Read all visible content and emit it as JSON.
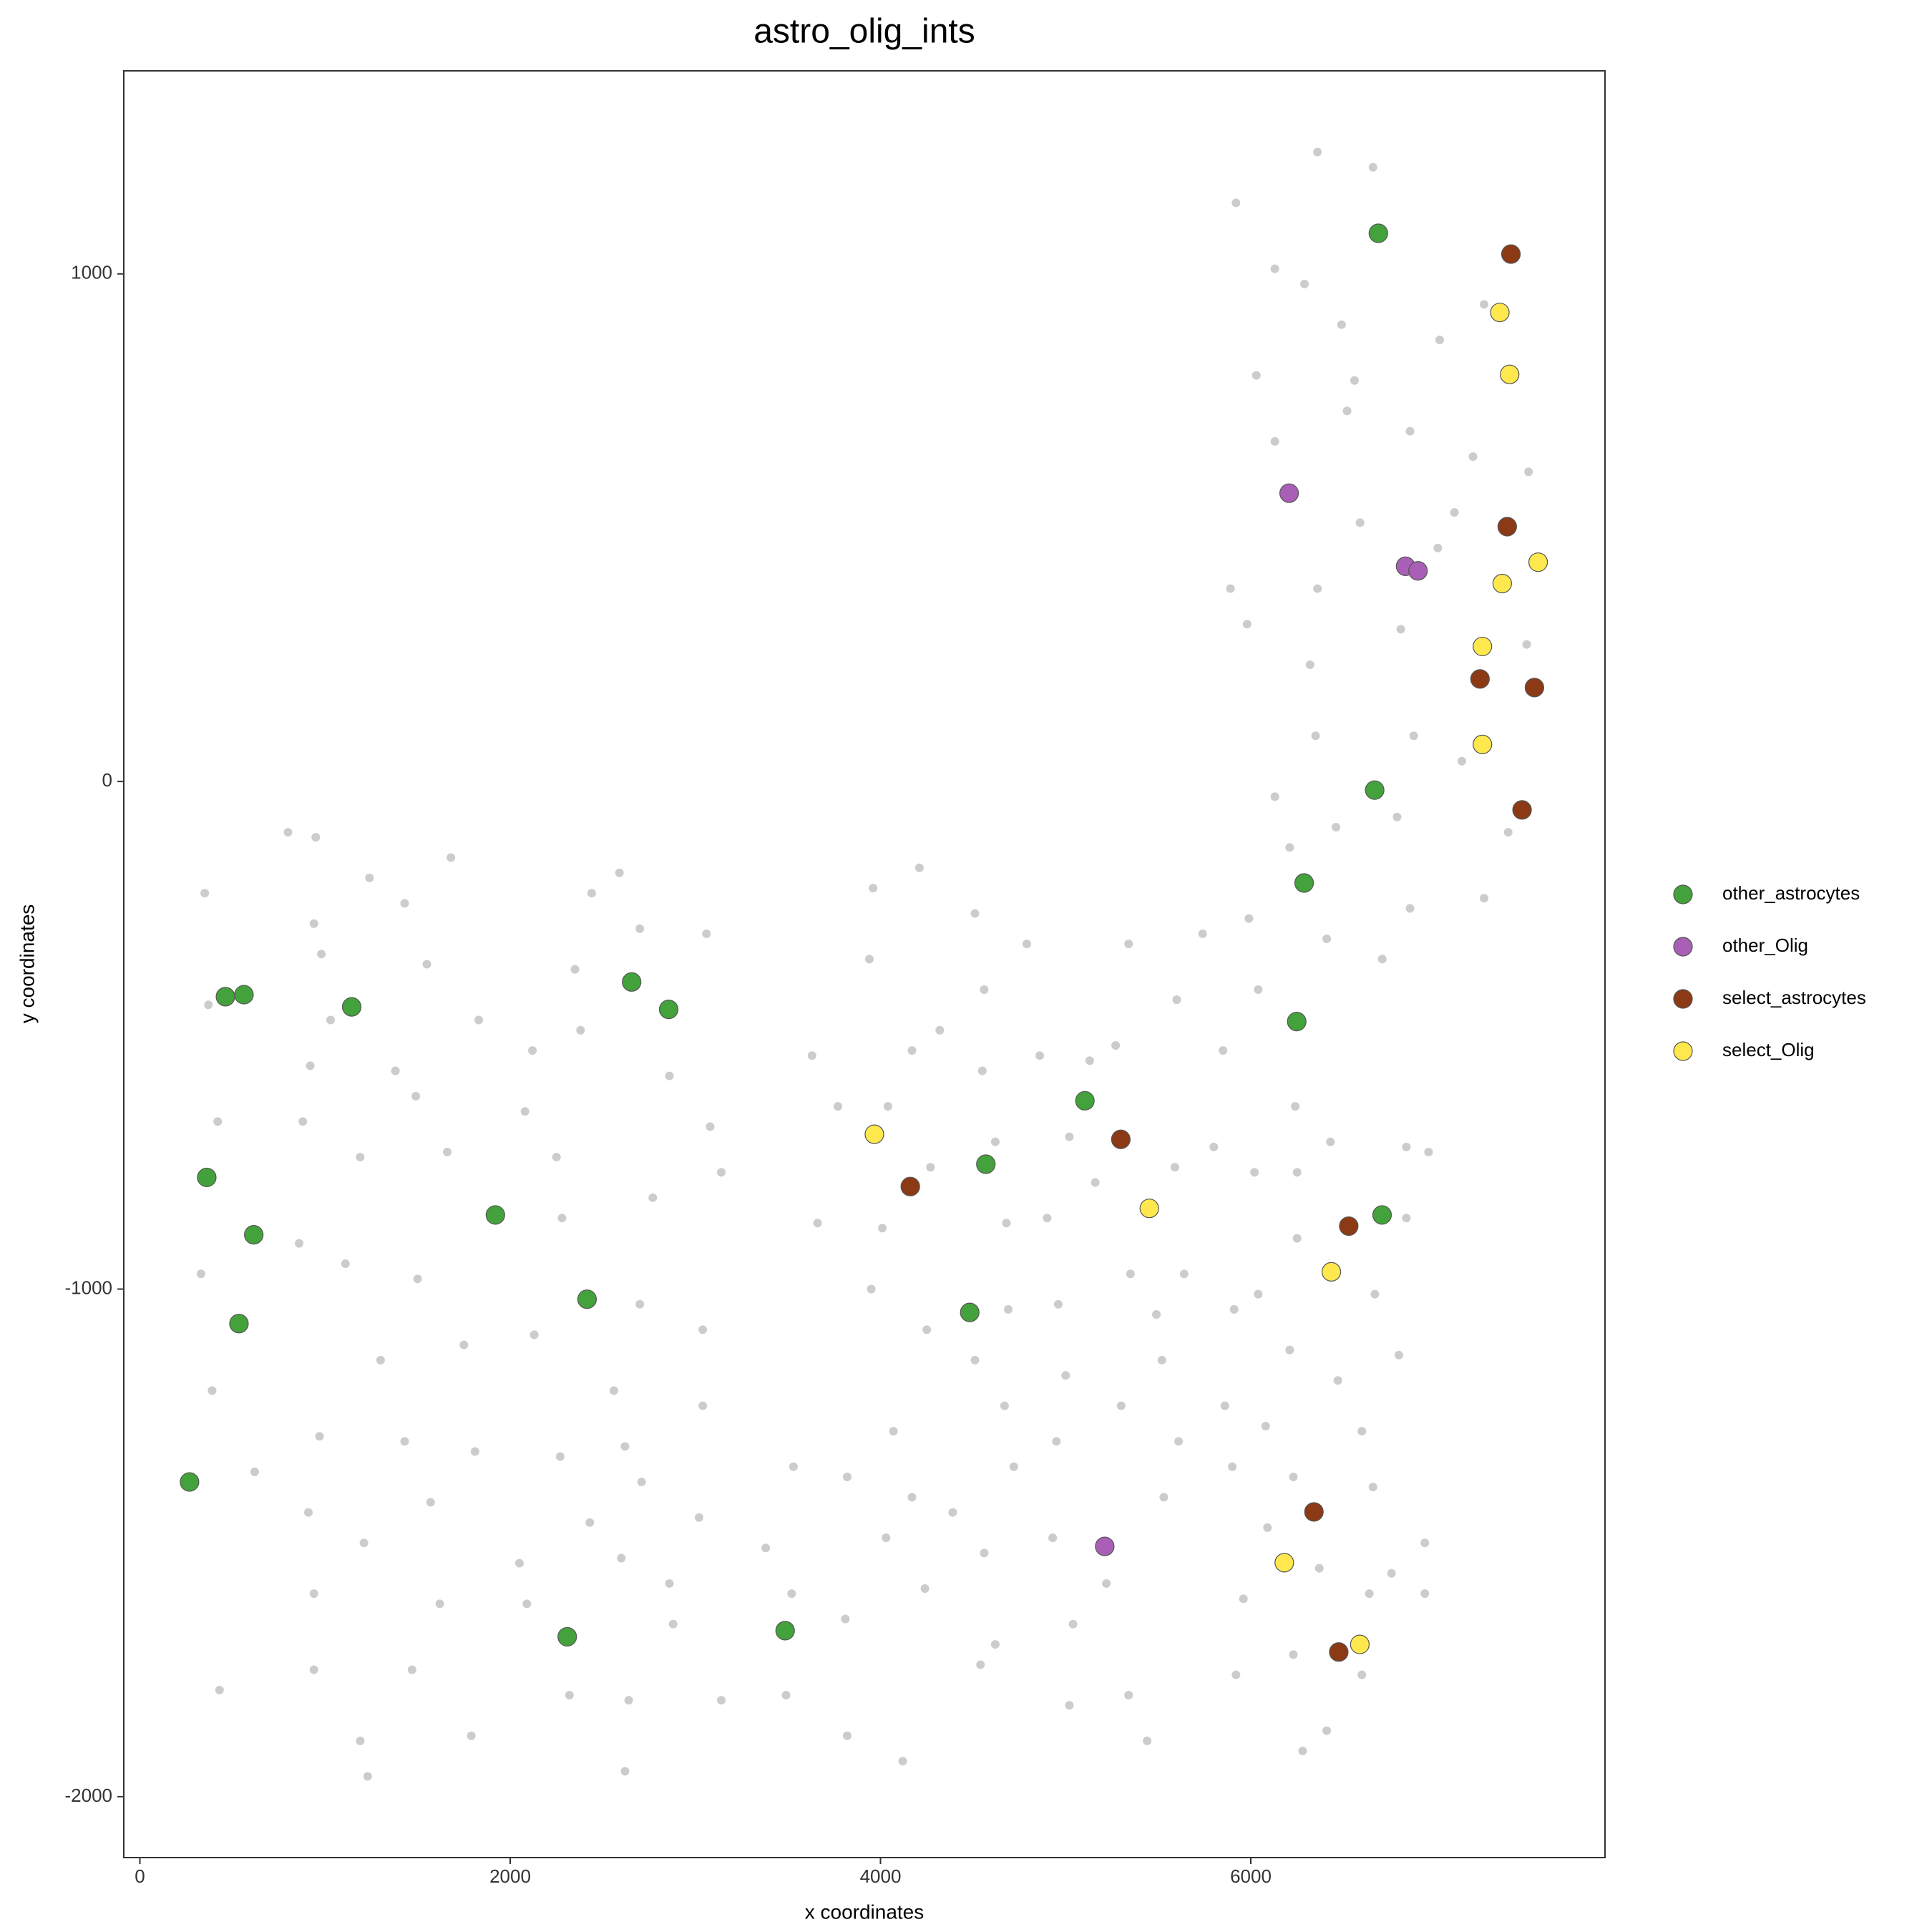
{
  "chart_data": {
    "type": "scatter",
    "title": "astro_olig_ints",
    "x_label": "x coordinates",
    "y_label": "y coordinates",
    "xlim": [
      -87,
      7913
    ],
    "ylim": [
      -2120,
      1400
    ],
    "xticks": [
      0,
      2000,
      4000,
      6000
    ],
    "yticks": [
      -2000,
      -1000,
      0,
      1000
    ],
    "grid": false,
    "legend": "right",
    "series": [
      {
        "color": "#cccccc",
        "x": [
          6360,
          6660,
          5920,
          6130,
          6290,
          7260,
          6490,
          7020,
          6030,
          6560,
          6520,
          6860,
          6130,
          7200,
          7500,
          7100,
          6590,
          7010,
          5890,
          6360,
          5980,
          6810,
          6320,
          7490,
          6880,
          6350,
          7140,
          6130,
          6790,
          6460,
          7390,
          6210,
          7260,
          6860,
          5990,
          6410,
          6710,
          5740,
          5340,
          5600,
          6040,
          5850,
          800,
          950,
          350,
          1240,
          1680,
          940,
          1430,
          370,
          980,
          1550,
          1030,
          1830,
          920,
          1380,
          420,
          1490,
          880,
          1190,
          1660,
          860,
          1110,
          1500,
          330,
          1300,
          1750,
          390,
          970,
          620,
          1430,
          1810,
          1570,
          910,
          1210,
          940,
          1620,
          940,
          1470,
          430,
          1190,
          1230,
          1790,
          2590,
          2440,
          2700,
          3060,
          2350,
          2380,
          2120,
          2860,
          2080,
          3080,
          2250,
          2770,
          3140,
          2280,
          2700,
          3040,
          2130,
          2560,
          3040,
          2620,
          2270,
          2710,
          2430,
          3020,
          2050,
          2600,
          2860,
          2090,
          2880,
          2320,
          2640,
          2620,
          3140,
          3960,
          4210,
          3940,
          3630,
          4170,
          4510,
          4790,
          4560,
          4320,
          4550,
          4860,
          5130,
          5270,
          3770,
          4040,
          4270,
          4620,
          5020,
          5160,
          5590,
          5800,
          3660,
          4010,
          4680,
          4900,
          5350,
          5640,
          3950,
          4690,
          4960,
          5490,
          5910,
          4250,
          4510,
          5000,
          5520,
          4070,
          4670,
          4950,
          5300,
          5610,
          5860,
          3530,
          3820,
          4170,
          4720,
          4390,
          4930,
          5530,
          3380,
          4030,
          4560,
          5220,
          4240,
          3520,
          3810,
          5040,
          4620,
          4540,
          3490,
          3820,
          4120,
          5020,
          5340,
          5440,
          6240,
          6020,
          6250,
          6430,
          6840,
          6960,
          6840,
          6250,
          6040,
          6670,
          6210,
          6800,
          6470,
          6600,
          6080,
          5900,
          6230,
          6660,
          6090,
          6370,
          6640,
          6940,
          6940,
          5960,
          6230,
          6600,
          6410,
          6280,
          5920,
          6760
        ],
        "values": [
          1240,
          1210,
          1140,
          1010,
          980,
          940,
          900,
          870,
          800,
          790,
          730,
          690,
          670,
          640,
          610,
          530,
          510,
          460,
          380,
          380,
          310,
          300,
          230,
          270,
          90,
          90,
          40,
          -30,
          -70,
          -90,
          -100,
          -130,
          -230,
          -250,
          -270,
          -310,
          -350,
          -300,
          -320,
          -430,
          -410,
          -530,
          -100,
          -110,
          -220,
          -190,
          -150,
          -280,
          -240,
          -440,
          -340,
          -360,
          -470,
          -470,
          -560,
          -570,
          -670,
          -620,
          -670,
          -740,
          -730,
          -910,
          -950,
          -980,
          -970,
          -1140,
          -1110,
          -1200,
          -1290,
          -1360,
          -1300,
          -1320,
          -1420,
          -1440,
          -1500,
          -1600,
          -1620,
          -1750,
          -1750,
          -1790,
          -1890,
          -1960,
          -1880,
          -180,
          -220,
          -290,
          -300,
          -370,
          -490,
          -530,
          -580,
          -650,
          -680,
          -740,
          -820,
          -770,
          -860,
          -1030,
          -1080,
          -1090,
          -1200,
          -1230,
          -1310,
          -1330,
          -1380,
          -1460,
          -1450,
          -1540,
          -1530,
          -1580,
          -1620,
          -1660,
          -1800,
          -1810,
          -1950,
          -1810,
          -210,
          -170,
          -350,
          -540,
          -530,
          -260,
          -320,
          -410,
          -490,
          -570,
          -540,
          -550,
          -520,
          -640,
          -640,
          -760,
          -710,
          -700,
          -790,
          -760,
          -720,
          -870,
          -880,
          -870,
          -860,
          -970,
          -970,
          -1000,
          -1040,
          -1030,
          -1050,
          -1040,
          -1080,
          -1140,
          -1170,
          -1140,
          -1280,
          -1230,
          -1300,
          -1230,
          -1300,
          -1230,
          -1350,
          -1370,
          -1410,
          -1350,
          -1440,
          -1490,
          -1410,
          -1510,
          -1490,
          -1520,
          -1580,
          -1590,
          -1600,
          -1650,
          -1660,
          -1700,
          -1740,
          -1800,
          -1880,
          -1930,
          -1820,
          -1800,
          -1890,
          -640,
          -770,
          -770,
          -710,
          -720,
          -730,
          -860,
          -900,
          -1010,
          -1010,
          -1120,
          -1130,
          -1180,
          -1280,
          -1270,
          -1350,
          -1370,
          -1390,
          -1470,
          -1550,
          -1600,
          -1500,
          -1600,
          -1610,
          -1720,
          -1760,
          -1870,
          -1910,
          -1760,
          -1560
        ]
      },
      {
        "name": "other_astrocytes",
        "color": "#43a23b",
        "x": [
          6689,
          462,
          562,
          1144,
          2656,
          2856,
          361,
          615,
          535,
          1920,
          2415,
          268,
          2308,
          3485,
          4482,
          4569,
          5104,
          6669,
          6288,
          6248,
          6709
        ],
        "values": [
          1080,
          -424,
          -420,
          -444,
          -395,
          -449,
          -780,
          -893,
          -1068,
          -854,
          -1020,
          -1380,
          -1685,
          -1673,
          -1046,
          -754,
          -629,
          -17,
          -200,
          -473,
          -854
        ]
      },
      {
        "name": "other_Olig",
        "color": "#a95fb5",
        "x": [
          6207,
          6836,
          6903,
          5211
        ],
        "values": [
          568,
          424,
          415,
          -1507
        ]
      },
      {
        "name": "select_astrocytes",
        "color": "#8b3a15",
        "x": [
          7405,
          7385,
          7238,
          7532,
          7465,
          4161,
          5298,
          6529,
          6341,
          6475
        ],
        "values": [
          1039,
          502,
          202,
          185,
          -56,
          -798,
          -705,
          -876,
          -1439,
          -1715
        ]
      },
      {
        "name": "select_Olig",
        "color": "#ffe84d",
        "x": [
          7345,
          7398,
          7552,
          7358,
          7251,
          7251,
          3967,
          5452,
          6435,
          6181,
          6589
        ],
        "values": [
          924,
          802,
          432,
          390,
          266,
          73,
          -695,
          -841,
          -966,
          -1539,
          -1700
        ]
      }
    ]
  }
}
